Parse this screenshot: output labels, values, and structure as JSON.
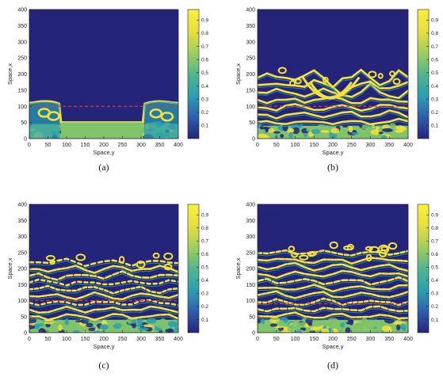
{
  "colors": {
    "background": "#24247a",
    "mid_low": "#2aa0b3",
    "mid": "#7fc36a",
    "high": "#f2e23a",
    "threshold_line": "#e8362b",
    "colormap": [
      "#24247a",
      "#2f5fae",
      "#2aa0b3",
      "#52b68c",
      "#9fcf5c",
      "#e7df3e",
      "#f9f13c"
    ]
  },
  "chart_data": [
    {
      "type": "heatmap",
      "panel_label": "(a)",
      "xlabel": "Space,y",
      "ylabel": "Space,x",
      "xticks": [
        0,
        50,
        100,
        150,
        200,
        250,
        300,
        350,
        400
      ],
      "yticks": [
        0,
        50,
        100,
        150,
        200,
        250,
        300,
        350,
        400
      ],
      "xlim": [
        0,
        400
      ],
      "ylim": [
        0,
        400
      ],
      "colorbar_ticks": [
        "0.1",
        "0.2",
        "0.3",
        "0.4",
        "0.5",
        "0.6",
        "0.7",
        "0.8",
        "0.9"
      ],
      "colorbar_range": [
        0,
        0.98
      ],
      "threshold_y": 100,
      "front_height": 110
    },
    {
      "type": "heatmap",
      "panel_label": "(b)",
      "xlabel": "Space,y",
      "ylabel": "Space,x",
      "xticks": [
        0,
        50,
        100,
        150,
        200,
        250,
        300,
        350,
        400
      ],
      "yticks": [
        0,
        50,
        100,
        150,
        200,
        250,
        300,
        350,
        400
      ],
      "xlim": [
        0,
        400
      ],
      "ylim": [
        0,
        400
      ],
      "colorbar_ticks": [
        "0.1",
        "0.2",
        "0.3",
        "0.4",
        "0.5",
        "0.6",
        "0.7",
        "0.8",
        "0.9"
      ],
      "colorbar_range": [
        0,
        0.98
      ],
      "threshold_y": 100,
      "front_height": 200
    },
    {
      "type": "heatmap",
      "panel_label": "(c)",
      "xlabel": "Space,y",
      "ylabel": "Space,x",
      "xticks": [
        0,
        50,
        100,
        150,
        200,
        250,
        300,
        350,
        400
      ],
      "yticks": [
        0,
        50,
        100,
        150,
        200,
        250,
        300,
        350,
        400
      ],
      "xlim": [
        0,
        400
      ],
      "ylim": [
        0,
        400
      ],
      "colorbar_ticks": [
        "0.1",
        "0.2",
        "0.3",
        "0.4",
        "0.5",
        "0.6",
        "0.7",
        "0.8",
        "0.9"
      ],
      "colorbar_range": [
        0,
        0.98
      ],
      "threshold_y": 100,
      "front_height": 230
    },
    {
      "type": "heatmap",
      "panel_label": "(d)",
      "xlabel": "Space,y",
      "ylabel": "Space,x",
      "xticks": [
        0,
        50,
        100,
        150,
        200,
        250,
        300,
        350,
        400
      ],
      "yticks": [
        0,
        50,
        100,
        150,
        200,
        250,
        300,
        350,
        400
      ],
      "xlim": [
        0,
        400
      ],
      "ylim": [
        0,
        400
      ],
      "colorbar_ticks": [
        "0.1",
        "0.2",
        "0.3",
        "0.4",
        "0.5",
        "0.6",
        "0.7",
        "0.8",
        "0.9"
      ],
      "colorbar_range": [
        0,
        0.98
      ],
      "threshold_y": 90,
      "front_height": 260
    }
  ]
}
